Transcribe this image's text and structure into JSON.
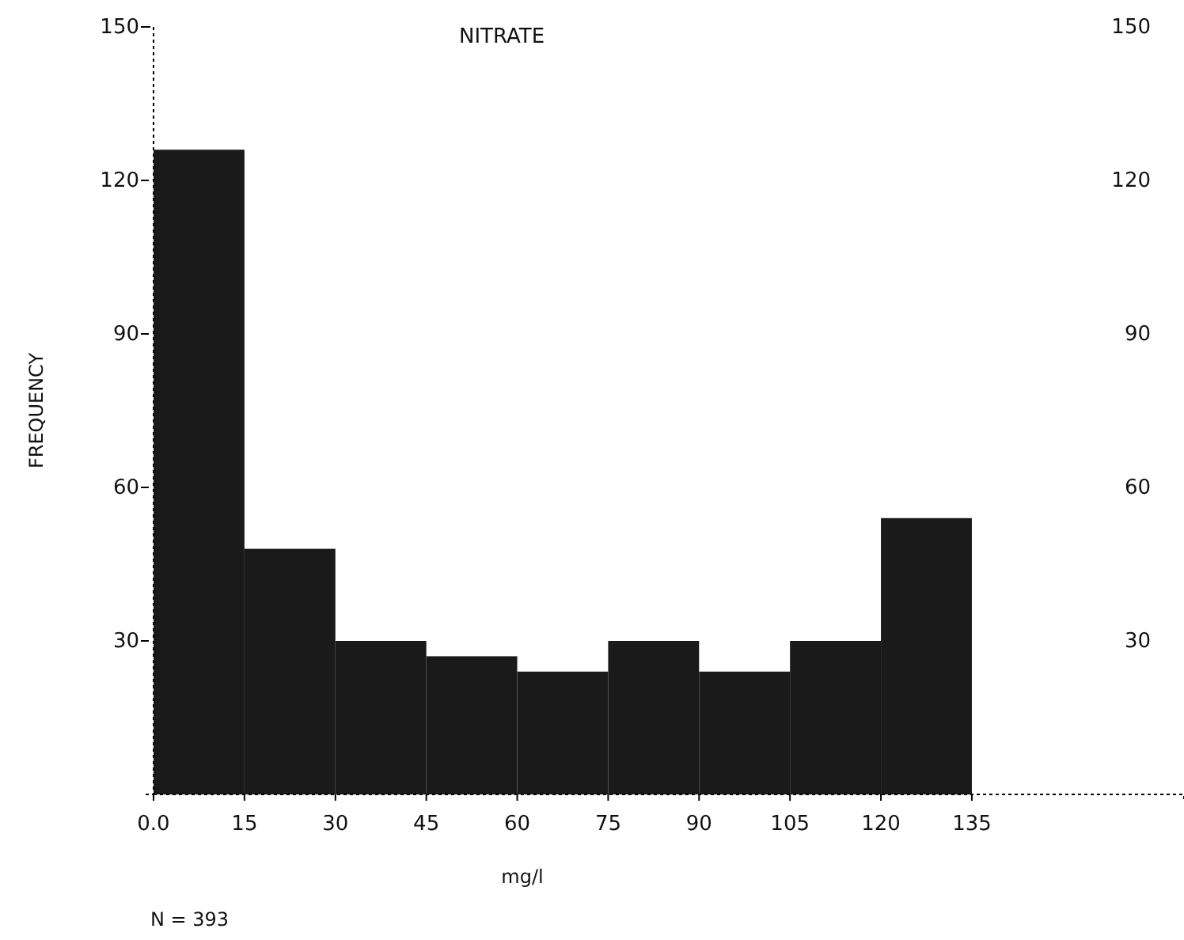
{
  "chart_data": {
    "type": "histogram",
    "title": "NITRATE",
    "xlabel": "mg/l",
    "ylabel": "FREQUENCY",
    "bins": [
      0,
      15,
      30,
      45,
      60,
      75,
      90,
      105,
      120,
      135
    ],
    "values": [
      126,
      48,
      30,
      27,
      24,
      30,
      24,
      30,
      54
    ],
    "color": "#1a1a1a",
    "xlim": [
      0,
      170
    ],
    "xticks": [
      {
        "value": 0,
        "label": "0.0"
      },
      15,
      30,
      45,
      60,
      75,
      90,
      105,
      120,
      135
    ],
    "ylim": [
      0,
      150
    ],
    "yticks": [
      30,
      60,
      90,
      120,
      150
    ],
    "y2lim": [
      0,
      150
    ],
    "y2ticks": [
      30,
      60,
      90,
      120,
      150
    ],
    "grid": false,
    "annotations": [
      "N = 393"
    ]
  }
}
